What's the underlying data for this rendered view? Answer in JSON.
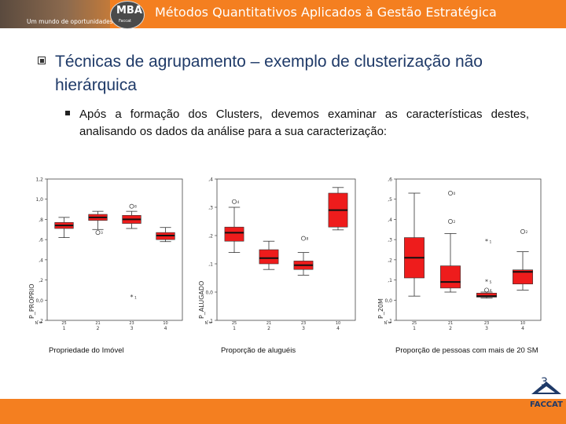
{
  "header": {
    "title": "Métodos Quantitativos Aplicados à Gestão Estratégica",
    "banner_text": "Um mundo de oportunidades",
    "badge_text": "MBA",
    "badge_sub": "Faccat",
    "accent_color": "#f47f20"
  },
  "heading": "Técnicas de agrupamento – exemplo de clusterização não hierárquica",
  "bullet_text": "Após a formação dos Clusters, devemos examinar as características destes, analisando os dados da análise para a sua caracterização:",
  "captions": [
    "Propriedade do Imóvel",
    "Proporção de aluguéis",
    "Proporção de pessoas com mais de 20 SM"
  ],
  "page_number": "3",
  "footer_logo_text": "FACCAT",
  "chart_data": [
    {
      "type": "boxplot",
      "ylabel": "P_PROPRIO",
      "ylim": [
        -0.2,
        1.2
      ],
      "yticks": [
        "-,2",
        "0,0",
        ",2",
        ",4",
        ",6",
        ",8",
        "1,0",
        "1,2"
      ],
      "ytick_values": [
        -0.2,
        0.0,
        0.2,
        0.4,
        0.6,
        0.8,
        1.0,
        1.2
      ],
      "categories": [
        "1",
        "2",
        "3",
        "4"
      ],
      "n_label": "N =",
      "n": [
        "25",
        "21",
        "23",
        "10"
      ],
      "boxes": [
        {
          "whisker_low": 0.62,
          "q1": 0.71,
          "median": 0.74,
          "q3": 0.77,
          "whisker_high": 0.82
        },
        {
          "whisker_low": 0.7,
          "q1": 0.79,
          "median": 0.82,
          "q3": 0.85,
          "whisker_high": 0.88
        },
        {
          "whisker_low": 0.71,
          "q1": 0.76,
          "median": 0.8,
          "q3": 0.84,
          "whisker_high": 0.88
        },
        {
          "whisker_low": 0.58,
          "q1": 0.6,
          "median": 0.64,
          "q3": 0.67,
          "whisker_high": 0.72
        }
      ],
      "outliers": [
        {
          "category": 2,
          "value": 0.67,
          "label": "3",
          "marker": "circle"
        },
        {
          "category": 3,
          "value": 0.93,
          "label": "8",
          "marker": "circle"
        },
        {
          "category": 3,
          "value": 0.03,
          "label": "1",
          "marker": "star"
        }
      ]
    },
    {
      "type": "boxplot",
      "ylabel": "P_ALUGADO",
      "ylim": [
        -0.1,
        0.4
      ],
      "yticks": [
        "-,1",
        "0,0",
        ",1",
        ",2",
        ",3",
        ",4"
      ],
      "ytick_values": [
        -0.1,
        0.0,
        0.1,
        0.2,
        0.3,
        0.4
      ],
      "categories": [
        "1",
        "2",
        "3",
        "4"
      ],
      "n_label": "N =",
      "n": [
        "25",
        "21",
        "23",
        "10"
      ],
      "boxes": [
        {
          "whisker_low": 0.14,
          "q1": 0.18,
          "median": 0.21,
          "q3": 0.23,
          "whisker_high": 0.3
        },
        {
          "whisker_low": 0.08,
          "q1": 0.1,
          "median": 0.12,
          "q3": 0.15,
          "whisker_high": 0.18
        },
        {
          "whisker_low": 0.06,
          "q1": 0.08,
          "median": 0.095,
          "q3": 0.11,
          "whisker_high": 0.14
        },
        {
          "whisker_low": 0.22,
          "q1": 0.23,
          "median": 0.29,
          "q3": 0.35,
          "whisker_high": 0.37
        }
      ],
      "outliers": [
        {
          "category": 1,
          "value": 0.32,
          "label": "4",
          "marker": "circle"
        },
        {
          "category": 3,
          "value": 0.19,
          "label": "8",
          "marker": "circle"
        }
      ]
    },
    {
      "type": "boxplot",
      "ylabel": "P_20M",
      "ylim": [
        -0.1,
        0.6
      ],
      "yticks": [
        "-,1",
        "0,0",
        ",1",
        ",2",
        ",3",
        ",4",
        ",5",
        ",6"
      ],
      "ytick_values": [
        -0.1,
        0.0,
        0.1,
        0.2,
        0.3,
        0.4,
        0.5,
        0.6
      ],
      "categories": [
        "1",
        "2",
        "3",
        "4"
      ],
      "n_label": "N =",
      "n": [
        "25",
        "21",
        "23",
        "10"
      ],
      "boxes": [
        {
          "whisker_low": 0.02,
          "q1": 0.11,
          "median": 0.21,
          "q3": 0.31,
          "whisker_high": 0.53
        },
        {
          "whisker_low": 0.04,
          "q1": 0.06,
          "median": 0.09,
          "q3": 0.17,
          "whisker_high": 0.33
        },
        {
          "whisker_low": 0.01,
          "q1": 0.015,
          "median": 0.02,
          "q3": 0.035,
          "whisker_high": 0.04
        },
        {
          "whisker_low": 0.05,
          "q1": 0.08,
          "median": 0.14,
          "q3": 0.15,
          "whisker_high": 0.24
        }
      ],
      "outliers": [
        {
          "category": 2,
          "value": 0.53,
          "label": "0",
          "marker": "circle"
        },
        {
          "category": 2,
          "value": 0.39,
          "label": "2",
          "marker": "circle"
        },
        {
          "category": 3,
          "value": 0.29,
          "label": "1",
          "marker": "star"
        },
        {
          "category": 3,
          "value": 0.09,
          "label": "5",
          "marker": "star"
        },
        {
          "category": 3,
          "value": 0.05,
          "label": "4",
          "marker": "circle"
        },
        {
          "category": 4,
          "value": 0.34,
          "label": "2",
          "marker": "circle"
        }
      ]
    }
  ]
}
